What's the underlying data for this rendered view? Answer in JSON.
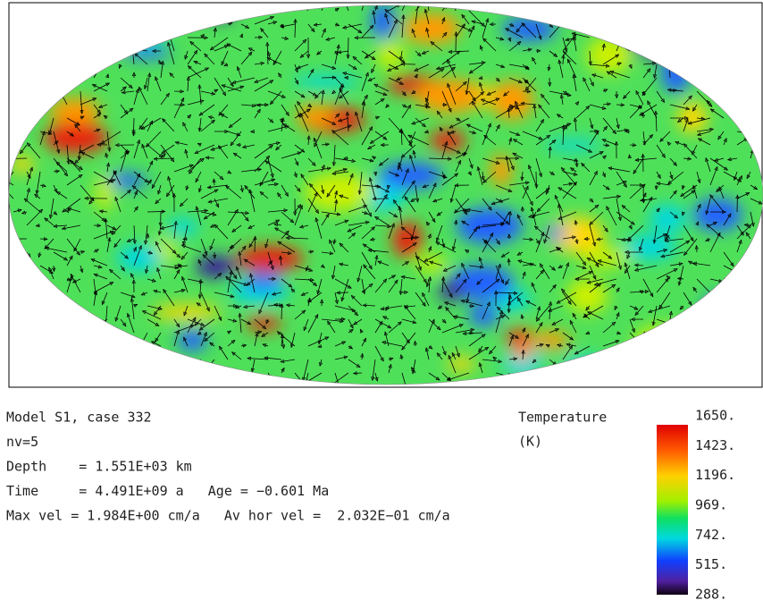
{
  "info": {
    "lines": [
      "Model S1, case 332",
      "nv=5",
      "Depth    = 1.551E+03 km",
      "Time     = 4.491E+09 a   Age = −0.601 Ma",
      "Max vel = 1.984E+00 cm/a   Av hor vel =  2.032E−01 cm/a"
    ]
  },
  "colorbar": {
    "title": "Temperature",
    "unit": "(K)",
    "ticks": [
      "1650.",
      "1423.",
      "1196.",
      "969.",
      "742.",
      "515.",
      "288."
    ]
  }
}
